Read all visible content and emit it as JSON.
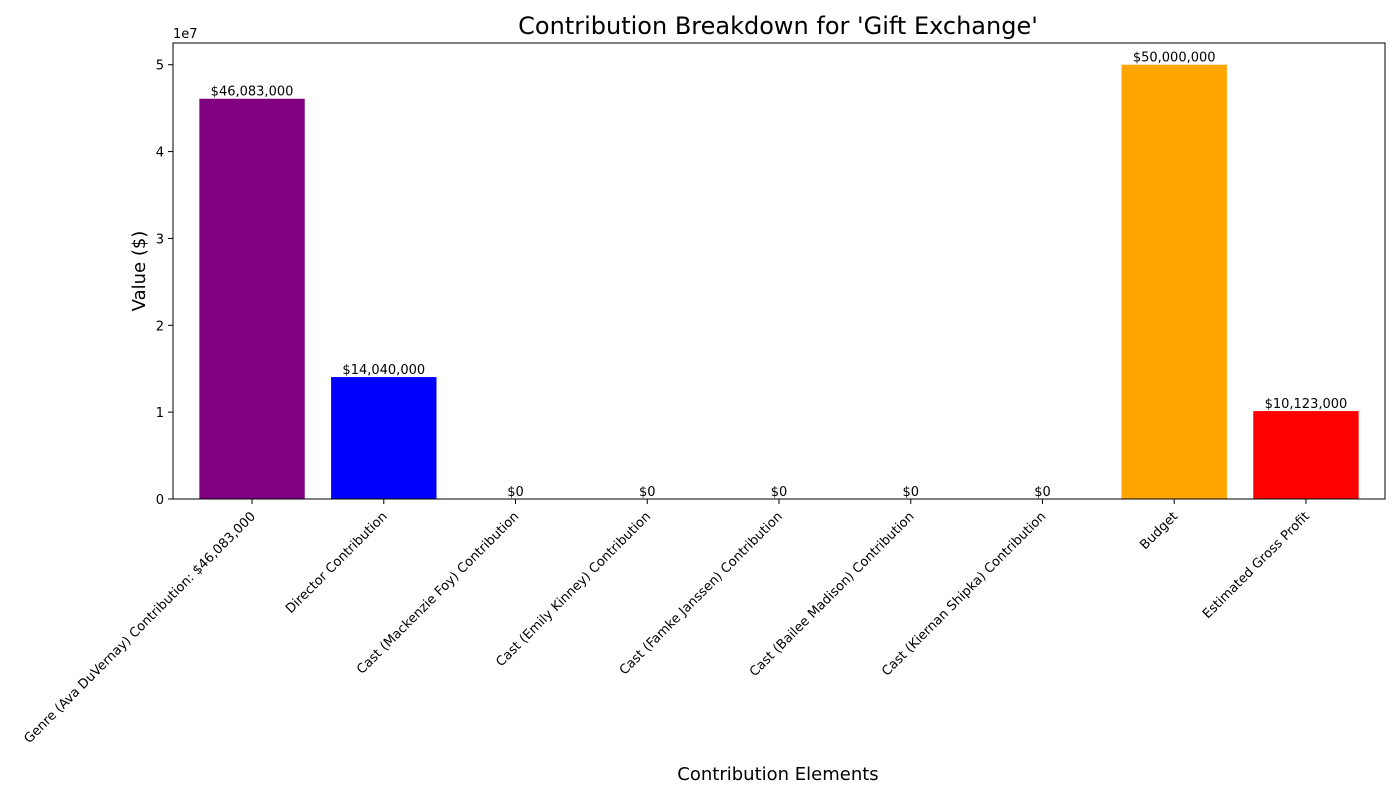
{
  "chart_data": {
    "type": "bar",
    "title": "Contribution Breakdown for 'Gift Exchange'",
    "xlabel": "Contribution Elements",
    "ylabel": "Value ($)",
    "y_offset_label": "1e7",
    "ylim": [
      0,
      52500000
    ],
    "yticks": [
      0,
      10000000,
      20000000,
      30000000,
      40000000,
      50000000
    ],
    "ytick_labels": [
      "0",
      "1",
      "2",
      "3",
      "4",
      "5"
    ],
    "grid": false,
    "categories": [
      "Genre (Ava DuVernay) Contribution: $46,083,000",
      "Director Contribution",
      "Cast (Mackenzie Foy) Contribution",
      "Cast (Emily Kinney) Contribution",
      "Cast (Famke Janssen) Contribution",
      "Cast (Bailee Madison) Contribution",
      "Cast (Kiernan Shipka) Contribution",
      "Budget",
      "Estimated Gross Profit"
    ],
    "values": [
      46083000,
      14040000,
      0,
      0,
      0,
      0,
      0,
      50000000,
      10123000
    ],
    "value_labels": [
      "$46,083,000",
      "$14,040,000",
      "$0",
      "$0",
      "$0",
      "$0",
      "$0",
      "$50,000,000",
      "$10,123,000"
    ],
    "colors": [
      "#800080",
      "#0000ff",
      "#0000ff",
      "#0000ff",
      "#0000ff",
      "#0000ff",
      "#0000ff",
      "#ffa500",
      "#ff0000"
    ]
  }
}
